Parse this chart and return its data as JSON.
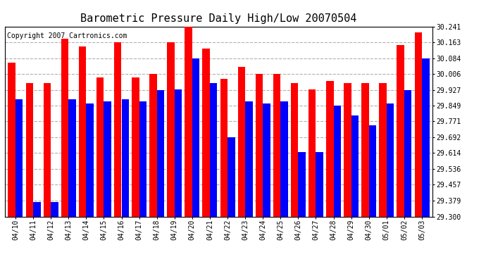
{
  "title": "Barometric Pressure Daily High/Low 20070504",
  "copyright": "Copyright 2007 Cartronics.com",
  "ylim": [
    29.3,
    30.241
  ],
  "yticks": [
    29.3,
    29.379,
    29.457,
    29.536,
    29.614,
    29.692,
    29.771,
    29.849,
    29.927,
    30.006,
    30.084,
    30.163,
    30.241
  ],
  "categories": [
    "04/10",
    "04/11",
    "04/12",
    "04/13",
    "04/14",
    "04/15",
    "04/16",
    "04/17",
    "04/18",
    "04/19",
    "04/20",
    "04/21",
    "04/22",
    "04/23",
    "04/24",
    "04/25",
    "04/26",
    "04/27",
    "04/28",
    "04/29",
    "04/30",
    "05/01",
    "05/02",
    "05/03"
  ],
  "highs": [
    30.06,
    29.96,
    29.96,
    30.18,
    30.14,
    29.99,
    30.163,
    29.99,
    30.006,
    30.163,
    30.241,
    30.13,
    29.98,
    30.04,
    30.006,
    30.006,
    29.96,
    29.93,
    29.97,
    29.96,
    29.96,
    29.96,
    30.15,
    30.21
  ],
  "lows": [
    29.88,
    29.37,
    29.37,
    29.88,
    29.86,
    29.87,
    29.88,
    29.87,
    29.927,
    29.93,
    30.084,
    29.96,
    29.692,
    29.87,
    29.86,
    29.87,
    29.62,
    29.62,
    29.849,
    29.8,
    29.75,
    29.86,
    29.927,
    30.084
  ],
  "high_color": "#ff0000",
  "low_color": "#0000ff",
  "bg_color": "#ffffff",
  "plot_bg": "#ffffff",
  "grid_color": "#b0b0b0",
  "title_fontsize": 11,
  "copyright_fontsize": 7,
  "bar_width": 0.42
}
